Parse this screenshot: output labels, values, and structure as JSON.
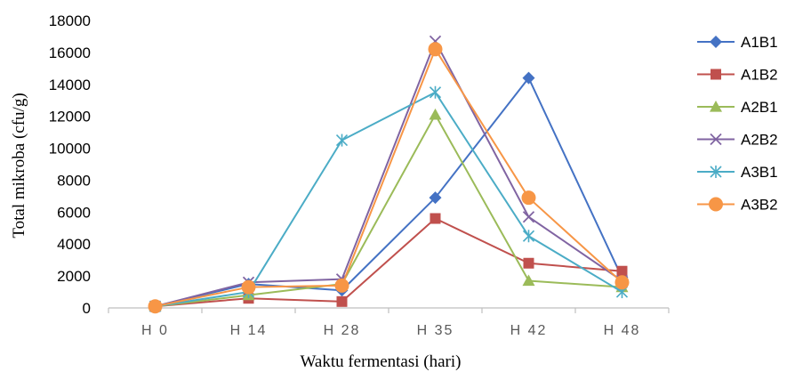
{
  "chart_data": {
    "type": "line",
    "title": "",
    "xlabel": "Waktu fermentasi (hari)",
    "ylabel": "Total mikroba (cfu/g)",
    "categories": [
      "H 0",
      "H 14",
      "H 28",
      "H 35",
      "H 42",
      "H 48"
    ],
    "ylim": [
      0,
      18000
    ],
    "yticks": [
      "0",
      "2000",
      "4000",
      "6000",
      "8000",
      "10000",
      "12000",
      "14000",
      "16000",
      "18000"
    ],
    "grid": false,
    "legend_position": "right",
    "series": [
      {
        "name": "A1B1",
        "color": "#4472C4",
        "marker": "diamond",
        "values": [
          100,
          1500,
          1100,
          6900,
          14400,
          1900
        ]
      },
      {
        "name": "A1B2",
        "color": "#C0504D",
        "marker": "square",
        "values": [
          100,
          600,
          400,
          5600,
          2800,
          2300
        ]
      },
      {
        "name": "A2B1",
        "color": "#9BBB59",
        "marker": "triangle",
        "values": [
          100,
          800,
          1500,
          12100,
          1700,
          1300
        ]
      },
      {
        "name": "A2B2",
        "color": "#8064A2",
        "marker": "x",
        "values": [
          100,
          1600,
          1800,
          16700,
          5700,
          1700
        ]
      },
      {
        "name": "A3B1",
        "color": "#4BACC6",
        "marker": "star",
        "values": [
          100,
          1000,
          10500,
          13500,
          4500,
          1000
        ]
      },
      {
        "name": "A3B2",
        "color": "#F79646",
        "marker": "circle",
        "values": [
          100,
          1300,
          1400,
          16200,
          6900,
          1600
        ]
      }
    ]
  }
}
